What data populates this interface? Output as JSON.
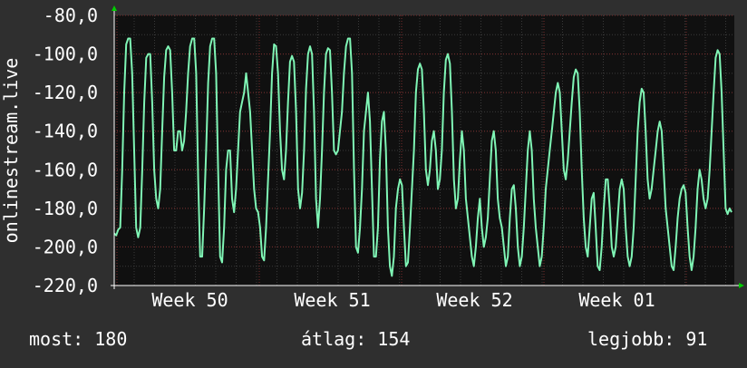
{
  "chart_data": {
    "type": "line",
    "ylabel": "onlinestream.live",
    "ylim": [
      -220,
      -80
    ],
    "y_ticks": [
      -80,
      -100,
      -120,
      -140,
      -160,
      -180,
      -200,
      -220
    ],
    "y_tick_labels": [
      "-80,0",
      "-100,0",
      "-120,0",
      "-140,0",
      "-160,0",
      "-180,0",
      "-200,0",
      "-220,0"
    ],
    "x_tick_labels": [
      "Week 50",
      "Week 51",
      "Week 52",
      "Week 01"
    ],
    "grid": true,
    "colors": {
      "background": "#2f2f2f",
      "plot_background": "#101010",
      "grid_major": "#7a2b2b",
      "grid_minor": "#3a3a3a",
      "line": "#7ff5b5",
      "text": "#ffffff",
      "arrow": "#00cc00"
    },
    "series": [
      {
        "values": [
          -193,
          -194,
          -191,
          -190,
          -160,
          -120,
          -95,
          -92,
          -92,
          -110,
          -150,
          -190,
          -195,
          -190,
          -160,
          -125,
          -102,
          -100,
          -100,
          -125,
          -160,
          -175,
          -180,
          -170,
          -140,
          -112,
          -98,
          -96,
          -98,
          -120,
          -150,
          -150,
          -140,
          -140,
          -150,
          -145,
          -130,
          -110,
          -96,
          -92,
          -92,
          -110,
          -165,
          -205,
          -205,
          -180,
          -150,
          -115,
          -96,
          -92,
          -92,
          -110,
          -160,
          -205,
          -208,
          -190,
          -160,
          -150,
          -150,
          -175,
          -182,
          -170,
          -150,
          -130,
          -125,
          -120,
          -110,
          -120,
          -130,
          -150,
          -170,
          -180,
          -182,
          -190,
          -205,
          -207,
          -190,
          -165,
          -140,
          -110,
          -95,
          -96,
          -110,
          -140,
          -160,
          -165,
          -150,
          -125,
          -104,
          -101,
          -104,
          -130,
          -170,
          -180,
          -172,
          -150,
          -118,
          -100,
          -96,
          -100,
          -130,
          -175,
          -190,
          -175,
          -150,
          -120,
          -100,
          -97,
          -98,
          -120,
          -150,
          -152,
          -150,
          -140,
          -130,
          -110,
          -96,
          -92,
          -92,
          -110,
          -160,
          -200,
          -203,
          -190,
          -170,
          -140,
          -130,
          -120,
          -135,
          -170,
          -205,
          -205,
          -190,
          -155,
          -135,
          -130,
          -150,
          -190,
          -210,
          -215,
          -205,
          -180,
          -170,
          -165,
          -168,
          -190,
          -210,
          -208,
          -190,
          -170,
          -150,
          -120,
          -108,
          -105,
          -108,
          -130,
          -160,
          -168,
          -160,
          -145,
          -140,
          -150,
          -170,
          -165,
          -150,
          -120,
          -103,
          -100,
          -105,
          -130,
          -165,
          -180,
          -175,
          -155,
          -140,
          -150,
          -175,
          -185,
          -195,
          -205,
          -210,
          -200,
          -185,
          -175,
          -190,
          -200,
          -195,
          -185,
          -165,
          -145,
          -140,
          -150,
          -175,
          -185,
          -190,
          -200,
          -210,
          -205,
          -185,
          -170,
          -168,
          -180,
          -200,
          -210,
          -205,
          -190,
          -170,
          -150,
          -140,
          -150,
          -175,
          -190,
          -200,
          -210,
          -205,
          -190,
          -170,
          -160,
          -150,
          -140,
          -130,
          -120,
          -115,
          -120,
          -140,
          -160,
          -165,
          -155,
          -140,
          -125,
          -112,
          -108,
          -110,
          -130,
          -160,
          -185,
          -200,
          -205,
          -190,
          -175,
          -172,
          -190,
          -210,
          -212,
          -200,
          -180,
          -165,
          -165,
          -180,
          -200,
          -205,
          -200,
          -185,
          -170,
          -165,
          -170,
          -190,
          -205,
          -210,
          -205,
          -190,
          -165,
          -140,
          -125,
          -118,
          -120,
          -140,
          -165,
          -175,
          -170,
          -160,
          -150,
          -140,
          -135,
          -140,
          -160,
          -180,
          -190,
          -200,
          -210,
          -212,
          -200,
          -185,
          -175,
          -170,
          -168,
          -172,
          -190,
          -205,
          -212,
          -205,
          -190,
          -170,
          -160,
          -165,
          -175,
          -180,
          -175,
          -160,
          -140,
          -120,
          -102,
          -98,
          -100,
          -120,
          -150,
          -180,
          -183,
          -180,
          -182
        ]
      }
    ]
  },
  "legend": {
    "current": "most: 180",
    "average": "átlag: 154",
    "best": "legjobb: 91"
  }
}
